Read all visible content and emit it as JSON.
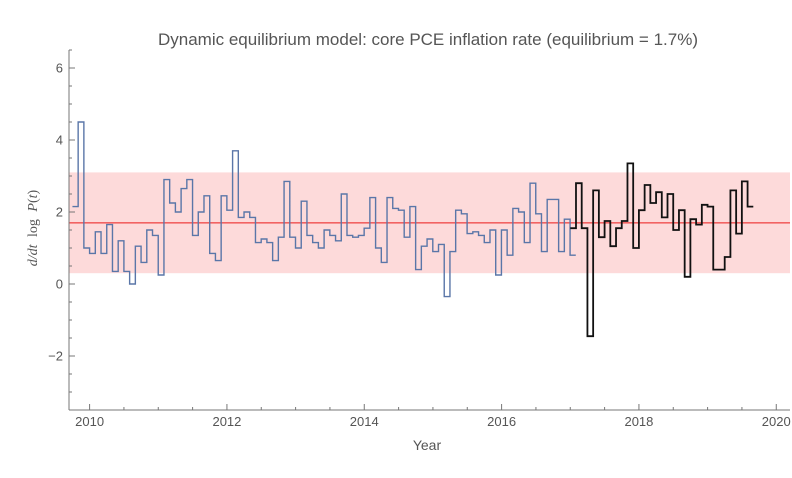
{
  "chart_data": {
    "type": "line",
    "title": "Dynamic equilibrium model: core PCE inflation rate (equilibrium = 1.7%)",
    "xlabel": "Year",
    "ylabel_parts": {
      "pre": "d/dt",
      "log": "log",
      "var": "P",
      "open": "(",
      "arg": "t",
      "close": ")"
    },
    "xlim": [
      2009.7,
      2020.2
    ],
    "ylim": [
      -3.5,
      6.5
    ],
    "x_ticks": [
      2010,
      2012,
      2014,
      2016,
      2018,
      2020
    ],
    "y_ticks": [
      -2,
      0,
      2,
      4,
      6
    ],
    "y_tick_labels": [
      "−2",
      "0",
      "2",
      "4",
      "6"
    ],
    "x_minor_step": 0.5,
    "y_minor_step": 0.5,
    "equilibrium": 1.7,
    "band": [
      0.3,
      3.1
    ],
    "colors": {
      "data": "#5a76a8",
      "forecast": "#111111",
      "equilibrium": "#f26363",
      "band": "#fddada"
    },
    "series": [
      {
        "x_start": 2009.75,
        "x_step": 0.0833,
        "values": [
          2.15,
          4.5,
          1.0,
          0.85,
          1.45,
          0.85,
          1.65,
          0.35,
          1.2,
          0.35,
          0.0,
          1.05,
          0.6,
          1.5,
          1.35,
          0.25,
          2.9,
          2.25,
          2.0,
          2.65,
          2.9,
          1.35,
          2.0,
          2.45,
          0.85,
          0.65,
          2.45,
          2.05,
          3.7,
          1.85,
          2.0,
          1.85,
          1.15,
          1.25,
          1.15,
          0.65,
          1.3,
          2.85,
          1.3,
          1.0,
          2.3,
          1.35,
          1.15,
          1.0,
          1.5,
          1.35,
          1.2,
          2.5,
          1.35,
          1.3,
          1.35,
          1.55,
          2.4,
          1.0,
          0.6,
          2.4,
          2.1,
          2.05,
          1.3,
          2.15,
          0.4,
          1.05,
          1.25,
          0.9,
          1.1,
          -0.35,
          0.9,
          2.05,
          1.95,
          1.4,
          1.45,
          1.35,
          1.15,
          1.5,
          0.25,
          1.5,
          0.8,
          2.1,
          2.0,
          1.15,
          2.8,
          1.95,
          0.9,
          2.35,
          2.35,
          0.9,
          1.8,
          0.8
        ]
      },
      {
        "x_start": 2017.0,
        "x_step": 0.0833,
        "values": [
          1.55,
          2.8,
          1.55,
          -1.45,
          2.6,
          1.3,
          1.75,
          1.05,
          1.55,
          1.75,
          3.35,
          1.0,
          2.05,
          2.75,
          2.25,
          2.55,
          1.85,
          2.5,
          1.5,
          2.05,
          0.2,
          1.8,
          1.65,
          2.2,
          2.15,
          0.4,
          0.4,
          0.75,
          2.6,
          1.4,
          2.85,
          2.15
        ]
      }
    ]
  }
}
